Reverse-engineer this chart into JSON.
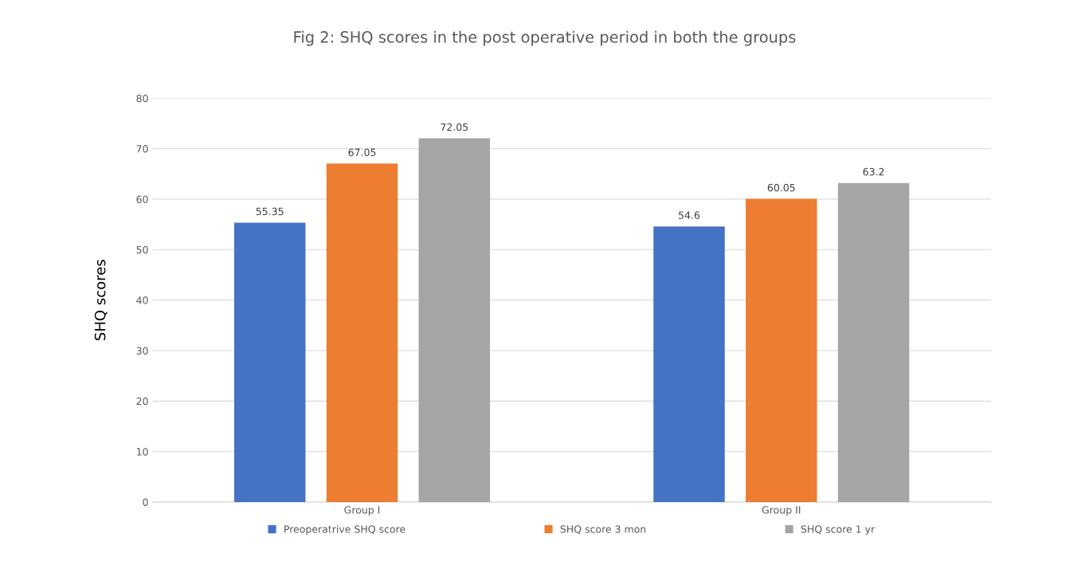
{
  "chart_data": {
    "type": "bar",
    "title": "Fig 2: SHQ scores in the post operative period in both the groups",
    "ylabel": "SHQ scores",
    "categories": [
      "Group I",
      "Group II"
    ],
    "series": [
      {
        "name": "Preoperatrive SHQ score",
        "color": "#4472c4",
        "values": [
          55.35,
          54.6
        ]
      },
      {
        "name": "SHQ score 3 mon",
        "color": "#ed7d31",
        "values": [
          67.05,
          60.05
        ]
      },
      {
        "name": "SHQ score 1 yr",
        "color": "#a5a5a5",
        "values": [
          72.05,
          63.2
        ]
      }
    ],
    "ylim": [
      0,
      80
    ],
    "yticks": [
      0,
      10,
      20,
      30,
      40,
      50,
      60,
      70,
      80
    ],
    "grid": "y",
    "legend": "bottom",
    "data_labels": true
  }
}
